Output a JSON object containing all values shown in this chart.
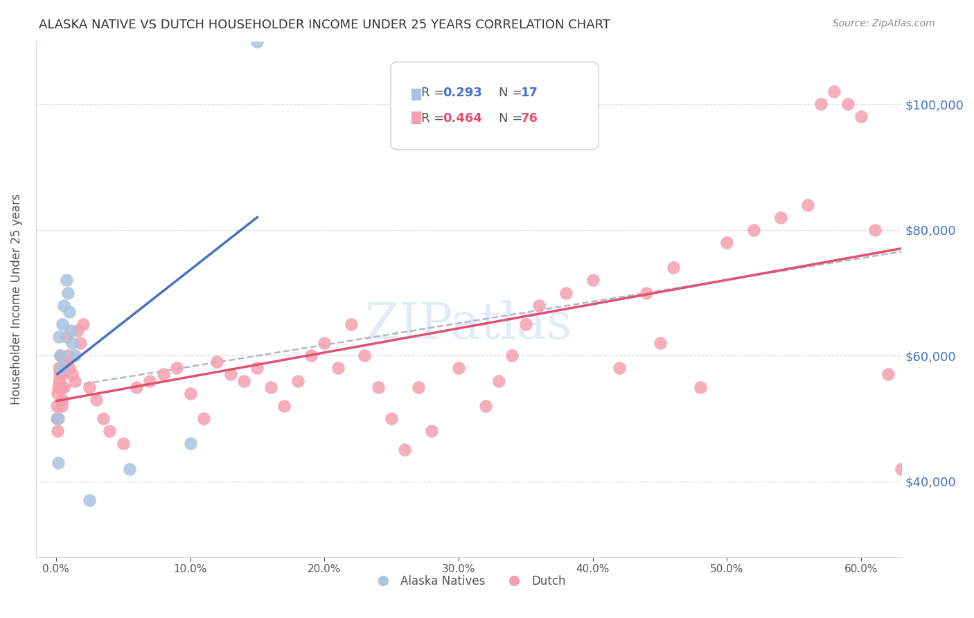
{
  "title": "ALASKA NATIVE VS DUTCH HOUSEHOLDER INCOME UNDER 25 YEARS CORRELATION CHART",
  "source": "Source: ZipAtlas.com",
  "xlabel_bottom": "",
  "ylabel": "Householder Income Under 25 years",
  "x_tick_labels": [
    "0.0%",
    "10.0%",
    "20.0%",
    "30.0%",
    "40.0%",
    "50.0%",
    "60.0%"
  ],
  "x_tick_values": [
    0.0,
    10.0,
    20.0,
    30.0,
    40.0,
    50.0,
    60.0
  ],
  "y_tick_labels": [
    "$40,000",
    "$60,000",
    "$80,000",
    "$100,000"
  ],
  "y_tick_values": [
    40000,
    60000,
    80000,
    100000
  ],
  "ylim": [
    28000,
    110000
  ],
  "xlim": [
    -1.5,
    63
  ],
  "legend_r1": "R = 0.293",
  "legend_n1": "N = 17",
  "legend_r2": "R = 0.464",
  "legend_n2": "N = 76",
  "legend_label1": "Alaska Natives",
  "legend_label2": "Dutch",
  "alaska_color": "#a8c4e0",
  "dutch_color": "#f4a0b0",
  "alaska_line_color": "#4472c4",
  "dutch_line_color": "#e05070",
  "overall_line_color": "#b0b8c8",
  "watermark": "ZIPatlas",
  "watermark_color": "#c8d8f0",
  "alaska_x": [
    0.1,
    0.2,
    0.3,
    0.4,
    0.5,
    0.6,
    0.8,
    0.9,
    1.0,
    1.1,
    1.2,
    1.4,
    2.5,
    5.5,
    10.0,
    15.0,
    0.15
  ],
  "alaska_y": [
    50000,
    63000,
    60000,
    58000,
    65000,
    68000,
    72000,
    70000,
    67000,
    64000,
    62000,
    60000,
    37000,
    42000,
    46000,
    110000,
    43000
  ],
  "dutch_x": [
    0.05,
    0.08,
    0.1,
    0.12,
    0.15,
    0.18,
    0.2,
    0.22,
    0.25,
    0.3,
    0.35,
    0.4,
    0.45,
    0.5,
    0.6,
    0.7,
    0.8,
    0.9,
    1.0,
    1.2,
    1.4,
    1.6,
    1.8,
    2.0,
    2.5,
    3.0,
    3.5,
    4.0,
    5.0,
    6.0,
    7.0,
    8.0,
    9.0,
    10.0,
    11.0,
    12.0,
    13.0,
    14.0,
    15.0,
    16.0,
    17.0,
    18.0,
    19.0,
    20.0,
    21.0,
    22.0,
    23.0,
    24.0,
    25.0,
    26.0,
    27.0,
    28.0,
    30.0,
    32.0,
    33.0,
    34.0,
    35.0,
    36.0,
    38.0,
    40.0,
    42.0,
    44.0,
    45.0,
    46.0,
    48.0,
    50.0,
    52.0,
    54.0,
    56.0,
    57.0,
    58.0,
    59.0,
    60.0,
    61.0,
    62.0,
    63.0
  ],
  "dutch_y": [
    50000,
    52000,
    48000,
    54000,
    55000,
    50000,
    58000,
    56000,
    57000,
    60000,
    55000,
    52000,
    57000,
    53000,
    55000,
    59000,
    63000,
    60000,
    58000,
    57000,
    56000,
    64000,
    62000,
    65000,
    55000,
    53000,
    50000,
    48000,
    46000,
    55000,
    56000,
    57000,
    58000,
    54000,
    50000,
    59000,
    57000,
    56000,
    58000,
    55000,
    52000,
    56000,
    60000,
    62000,
    58000,
    65000,
    60000,
    55000,
    50000,
    45000,
    55000,
    48000,
    58000,
    52000,
    56000,
    60000,
    65000,
    68000,
    70000,
    72000,
    58000,
    70000,
    62000,
    74000,
    55000,
    78000,
    80000,
    82000,
    84000,
    100000,
    102000,
    100000,
    98000,
    80000,
    57000,
    42000
  ]
}
